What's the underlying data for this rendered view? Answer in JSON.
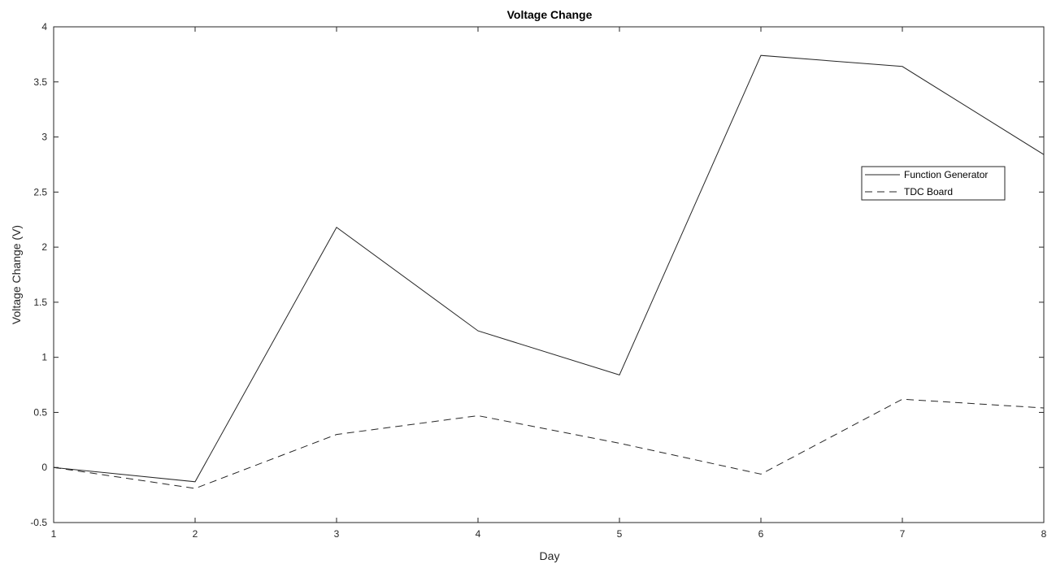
{
  "chart_data": {
    "type": "line",
    "title": "Voltage Change",
    "xlabel": "Day",
    "ylabel": "Voltage Change (V)",
    "xlim": [
      1,
      8
    ],
    "ylim": [
      -0.5,
      4
    ],
    "xticks": [
      "1",
      "2",
      "3",
      "4",
      "5",
      "6",
      "7",
      "8"
    ],
    "yticks": [
      "-0.5",
      "0",
      "0.5",
      "1",
      "1.5",
      "2",
      "2.5",
      "3",
      "3.5",
      "4"
    ],
    "grid": false,
    "legend_position": "right",
    "x": [
      1,
      2,
      3,
      4,
      5,
      6,
      7,
      8
    ],
    "series": [
      {
        "name": "Function Generator",
        "values": [
          0,
          -0.13,
          2.18,
          1.24,
          0.84,
          3.74,
          3.64,
          2.84
        ],
        "color": "#262626",
        "style": "solid"
      },
      {
        "name": "TDC Board",
        "values": [
          0,
          -0.19,
          0.3,
          0.47,
          0.22,
          -0.06,
          0.62,
          0.54
        ],
        "color": "#262626",
        "style": "dashed"
      }
    ]
  }
}
